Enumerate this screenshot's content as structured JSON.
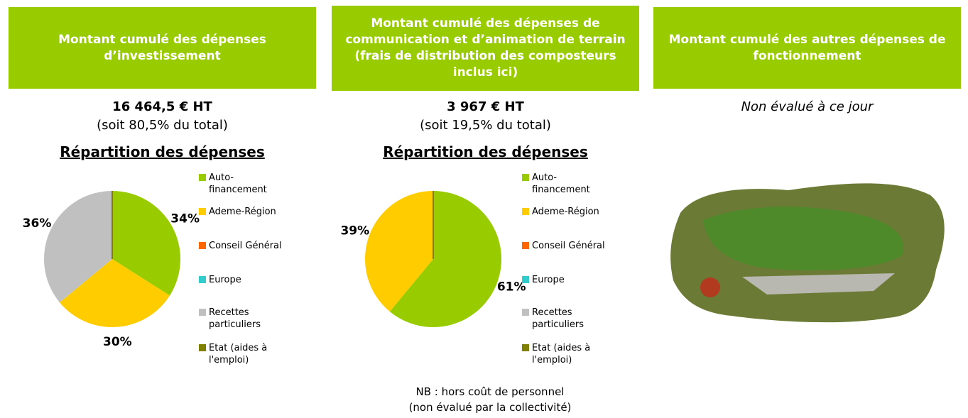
{
  "panels": [
    {
      "title": "Montant cumulé des dépenses d’investissement",
      "amount": "16 464,5 € HT",
      "share": "(soit 80,5% du total)"
    },
    {
      "title": "Montant cumulé des dépenses de communication et d’animation de terrain (frais de distribution des composteurs inclus ici)",
      "amount": "3 967 € HT",
      "share": "(soit 19,5% du total)",
      "note": [
        "NB : hors coût de personnel",
        "(non évalué par la collectivité)"
      ]
    },
    {
      "title": "Montant cumulé des autres dépenses de fonctionnement",
      "status": "Non évalué à ce jour"
    }
  ],
  "chart_data": [
    {
      "type": "pie",
      "title": "Répartition des dépenses",
      "categories": [
        "Auto-financement",
        "Ademe-Région",
        "Conseil Général",
        "Europe",
        "Recettes particuliers",
        "Etat (aides à l'emploi)"
      ],
      "values": [
        34,
        30,
        0,
        0,
        36,
        0
      ],
      "value_labels": [
        "34%",
        "30%",
        null,
        null,
        "36%",
        null
      ],
      "colors": [
        "#99cc00",
        "#ffcc00",
        "#ff6600",
        "#33cccc",
        "#c0c0c0",
        "#808000"
      ]
    },
    {
      "type": "pie",
      "title": "Répartition des dépenses",
      "categories": [
        "Auto-financement",
        "Ademe-Région",
        "Conseil Général",
        "Europe",
        "Recettes particuliers",
        "Etat (aides à l'emploi)"
      ],
      "values": [
        61,
        39,
        0,
        0,
        0,
        0
      ],
      "value_labels": [
        "61%",
        "39%",
        null,
        null,
        null,
        null
      ],
      "colors": [
        "#99cc00",
        "#ffcc00",
        "#ff6600",
        "#33cccc",
        "#c0c0c0",
        "#808000"
      ]
    }
  ]
}
